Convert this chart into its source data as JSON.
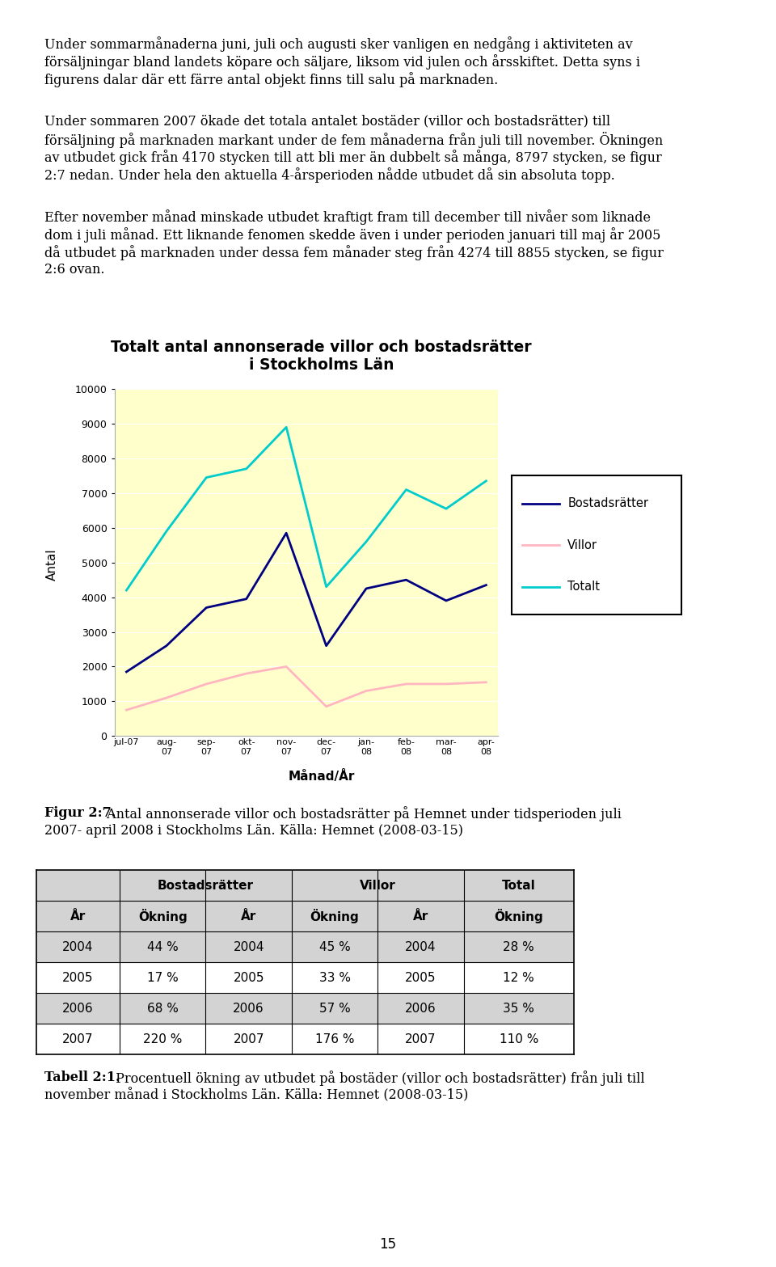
{
  "page_bg": "#ffffff",
  "para1_lines": [
    "Under sommarmånaderna juni, juli och augusti sker vanligen en nedgång i aktiviteten av",
    "försäljningar bland landets köpare och säljare, liksom vid julen och årsskiftet. Detta syns i",
    "figurens dalar där ett färre antal objekt finns till salu på marknaden."
  ],
  "para2_lines": [
    "Under sommaren 2007 ökade det totala antalet bostäder (villor och bostadsrätter) till",
    "försäljning på marknaden markant under de fem månaderna från juli till november. Ökningen",
    "av utbudet gick från 4170 stycken till att bli mer än dubbelt så många, 8797 stycken, se figur",
    "2:7 nedan. Under hela den aktuella 4-årsperioden nådde utbudet då sin absoluta topp."
  ],
  "para3_lines": [
    "Efter november månad minskade utbudet kraftigt fram till december till nivåer som liknade",
    "dom i juli månad. Ett liknande fenomen skedde även i under perioden januari till maj år 2005",
    "då utbudet på marknaden under dessa fem månader steg från 4274 till 8855 stycken, se figur",
    "2:6 ovan."
  ],
  "chart_title_line1": "Totalt antal annonserade villor och bostadsrätter",
  "chart_title_line2": "i Stockholms Län",
  "chart_bg": "#ffffcc",
  "outer_bg": "#c0c0c0",
  "x_labels": [
    "jul-07",
    "aug-\n07",
    "sep-\n07",
    "okt-\n07",
    "nov-\n07",
    "dec-\n07",
    "jan-\n08",
    "feb-\n08",
    "mar-\n08",
    "apr-\n08"
  ],
  "xlabel": "Månad/År",
  "ylabel": "Antal",
  "ylim": [
    0,
    10000
  ],
  "yticks": [
    0,
    1000,
    2000,
    3000,
    4000,
    5000,
    6000,
    7000,
    8000,
    9000,
    10000
  ],
  "bostadsratter": [
    1850,
    2600,
    3700,
    3950,
    5850,
    2600,
    4250,
    4500,
    3900,
    4350
  ],
  "villor": [
    750,
    1100,
    1500,
    1800,
    2000,
    850,
    1300,
    1500,
    1500,
    1550
  ],
  "totalt": [
    4200,
    5900,
    7450,
    7700,
    8900,
    4300,
    5600,
    7100,
    6550,
    7350
  ],
  "bostadsratter_color": "#000080",
  "villor_color": "#ffb6c1",
  "totalt_color": "#00cccc",
  "legend_border_color": "#000000",
  "fig_caption_bold": "Figur 2:7.",
  "fig_caption_rest_line1": " Antal annonserade villor och bostadsrätter på Hemnet under tidsperioden juli",
  "fig_caption_rest_line2": "2007- april 2008 i Stockholms Län. Källa: Hemnet (2008-03-15)",
  "table_subheaders": [
    "År",
    "Ökning",
    "År",
    "Ökning",
    "År",
    "Ökning"
  ],
  "table_data": [
    [
      "2004",
      "44 %",
      "2004",
      "45 %",
      "2004",
      "28 %"
    ],
    [
      "2005",
      "17 %",
      "2005",
      "33 %",
      "2005",
      "12 %"
    ],
    [
      "2006",
      "68 %",
      "2006",
      "57 %",
      "2006",
      "35 %"
    ],
    [
      "2007",
      "220 %",
      "2007",
      "176 %",
      "2007",
      "110 %"
    ]
  ],
  "table_cap_bold": "Tabell 2:1.",
  "table_cap_rest_line1": " Procentuell ökning av utbudet på bostäder (villor och bostadsrätter) från juli till",
  "table_cap_rest_line2": "november månad i Stockholms Län. Källa: Hemnet (2008-03-15)",
  "page_number": "15"
}
